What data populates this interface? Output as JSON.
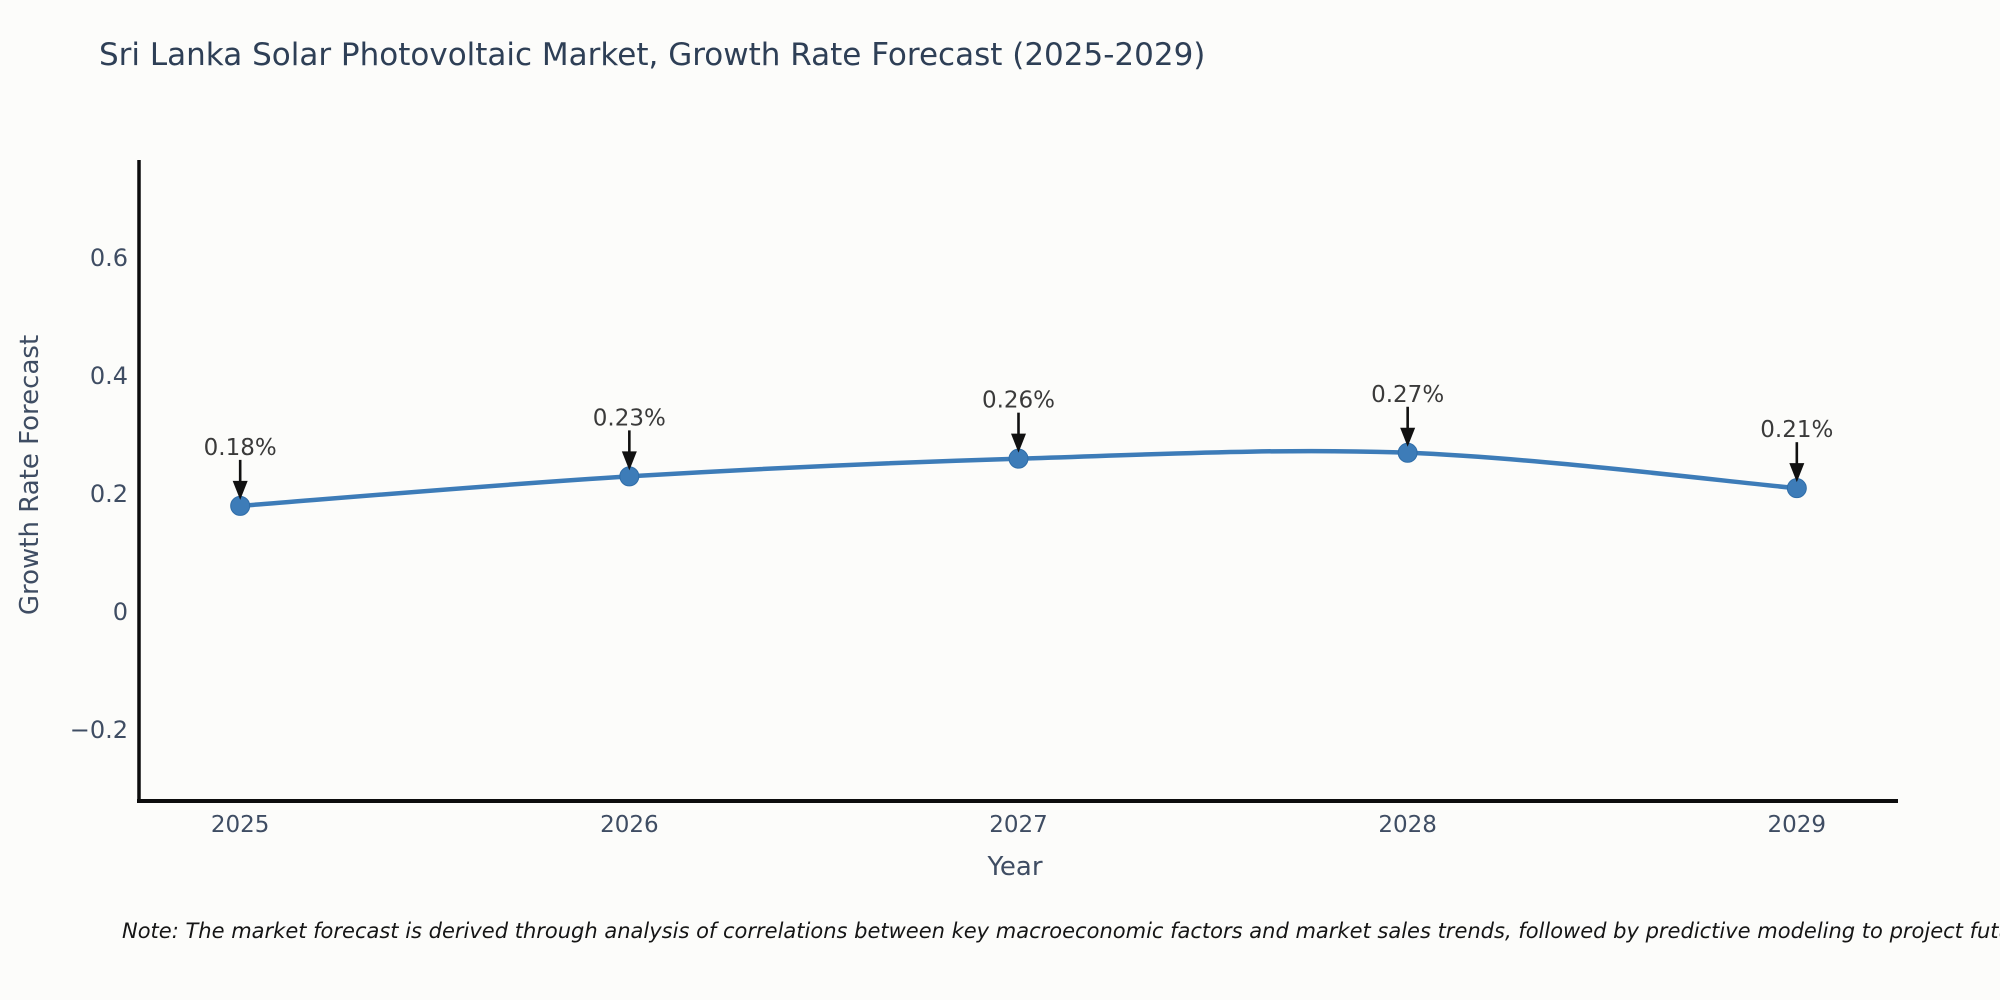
{
  "page": {
    "title": "Sri Lanka Solar Photovoltaic Market, Growth Rate Forecast (2025-2029)",
    "note": "Note: The market forecast is derived through analysis of correlations between key macroeconomic factors and market sales trends, followed by predictive modeling to project future sales"
  },
  "chart_data": {
    "type": "line",
    "title": "Sri Lanka Solar Photovoltaic Market, Growth Rate Forecast (2025-2029)",
    "xlabel": "Year",
    "ylabel": "Growth Rate Forecast",
    "x": [
      2025,
      2026,
      2027,
      2028,
      2029
    ],
    "values": [
      0.18,
      0.23,
      0.26,
      0.27,
      0.21
    ],
    "point_labels": [
      "0.18%",
      "0.23%",
      "0.26%",
      "0.27%",
      "0.21%"
    ],
    "xlim": [
      2024.74,
      2029.26
    ],
    "ylim": [
      -0.32,
      0.766
    ],
    "xticks": [
      2025,
      2026,
      2027,
      2028,
      2029
    ],
    "xtick_labels": [
      "2025",
      "2026",
      "2027",
      "2028",
      "2029"
    ],
    "yticks": [
      -0.2,
      0,
      0.2,
      0.4,
      0.6
    ],
    "ytick_labels": [
      "−0.2",
      "0",
      "0.2",
      "0.4",
      "0.6"
    ],
    "grid": false,
    "legend": "none",
    "colors": {
      "line": "#3d7cb8",
      "marker": "#3d7cb8",
      "marker_edge": "#2f6da8",
      "spine": "#0d0d0d",
      "tick_label": "#3f4d63",
      "annotation_text": "#3a3a3a",
      "annotation_arrow": "#111111"
    }
  }
}
